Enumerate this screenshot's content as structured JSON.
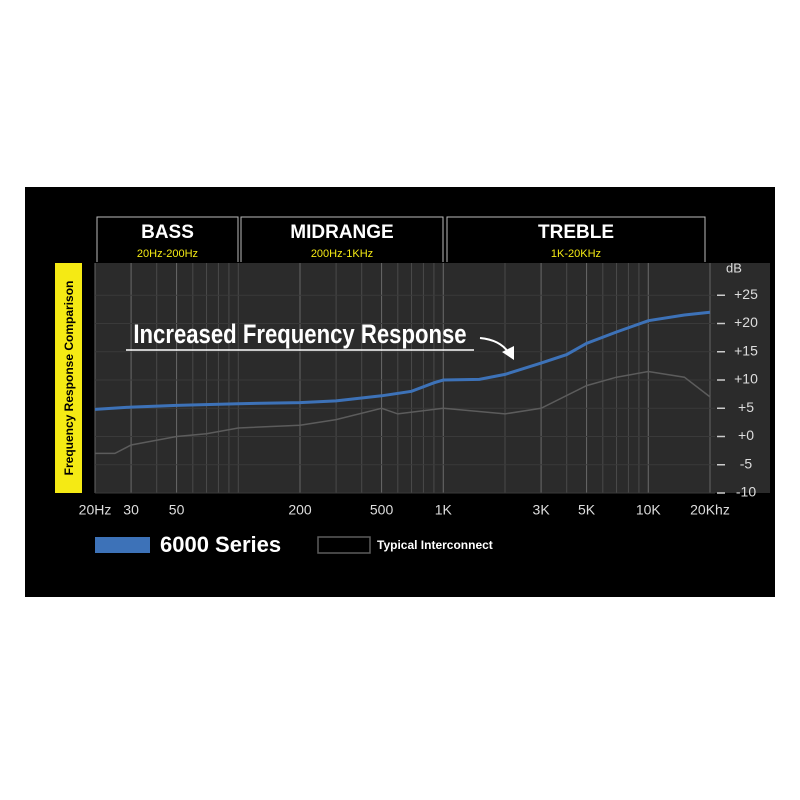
{
  "chart_data": {
    "type": "line",
    "annotation": "Increased Frequency Response",
    "y_label": "Frequency Response Comparison",
    "y_unit": "dB",
    "bands": [
      {
        "label": "BASS",
        "range": "20Hz-200Hz"
      },
      {
        "label": "MIDRANGE",
        "range": "200Hz-1KHz"
      },
      {
        "label": "TREBLE",
        "range": "1K-20KHz"
      }
    ],
    "x_scale": "log",
    "xlim": [
      20,
      20000
    ],
    "xticks": [
      {
        "value": 20,
        "label": "20Hz"
      },
      30,
      50,
      200,
      500,
      {
        "value": 1000,
        "label": "1K"
      },
      {
        "value": 3000,
        "label": "3K"
      },
      {
        "value": 5000,
        "label": "5K"
      },
      {
        "value": 10000,
        "label": "10K"
      },
      {
        "value": 20000,
        "label": "20Khz"
      }
    ],
    "ylim": [
      -10,
      30
    ],
    "yticks": [
      {
        "value": 25,
        "label": "+25"
      },
      {
        "value": 20,
        "label": "+20"
      },
      {
        "value": 15,
        "label": "+15"
      },
      {
        "value": 10,
        "label": "+10"
      },
      {
        "value": 5,
        "label": "+5"
      },
      {
        "value": 0,
        "label": "+0"
      },
      -5,
      -10
    ],
    "grid": true,
    "series": [
      {
        "name": "6000 Series",
        "color": "#3d72b8",
        "x": [
          20,
          30,
          50,
          100,
          200,
          300,
          500,
          700,
          900,
          1000,
          1500,
          2000,
          3000,
          4000,
          5000,
          7000,
          10000,
          15000,
          20000
        ],
        "values": [
          4.8,
          5.2,
          5.5,
          5.8,
          6,
          6.3,
          7.2,
          8,
          9.5,
          10,
          10.1,
          11,
          13,
          14.5,
          16.5,
          18.5,
          20.5,
          21.5,
          22
        ]
      },
      {
        "name": "Typical Interconnect",
        "color": "#5c5c5c",
        "x": [
          20,
          25,
          30,
          50,
          70,
          100,
          200,
          300,
          500,
          600,
          1000,
          2000,
          3000,
          5000,
          7000,
          10000,
          15000,
          20000
        ],
        "values": [
          -3,
          -3,
          -1.5,
          0,
          0.5,
          1.5,
          2,
          3,
          5,
          4,
          5,
          4,
          5,
          9,
          10.5,
          11.5,
          10.5,
          7
        ]
      }
    ]
  }
}
